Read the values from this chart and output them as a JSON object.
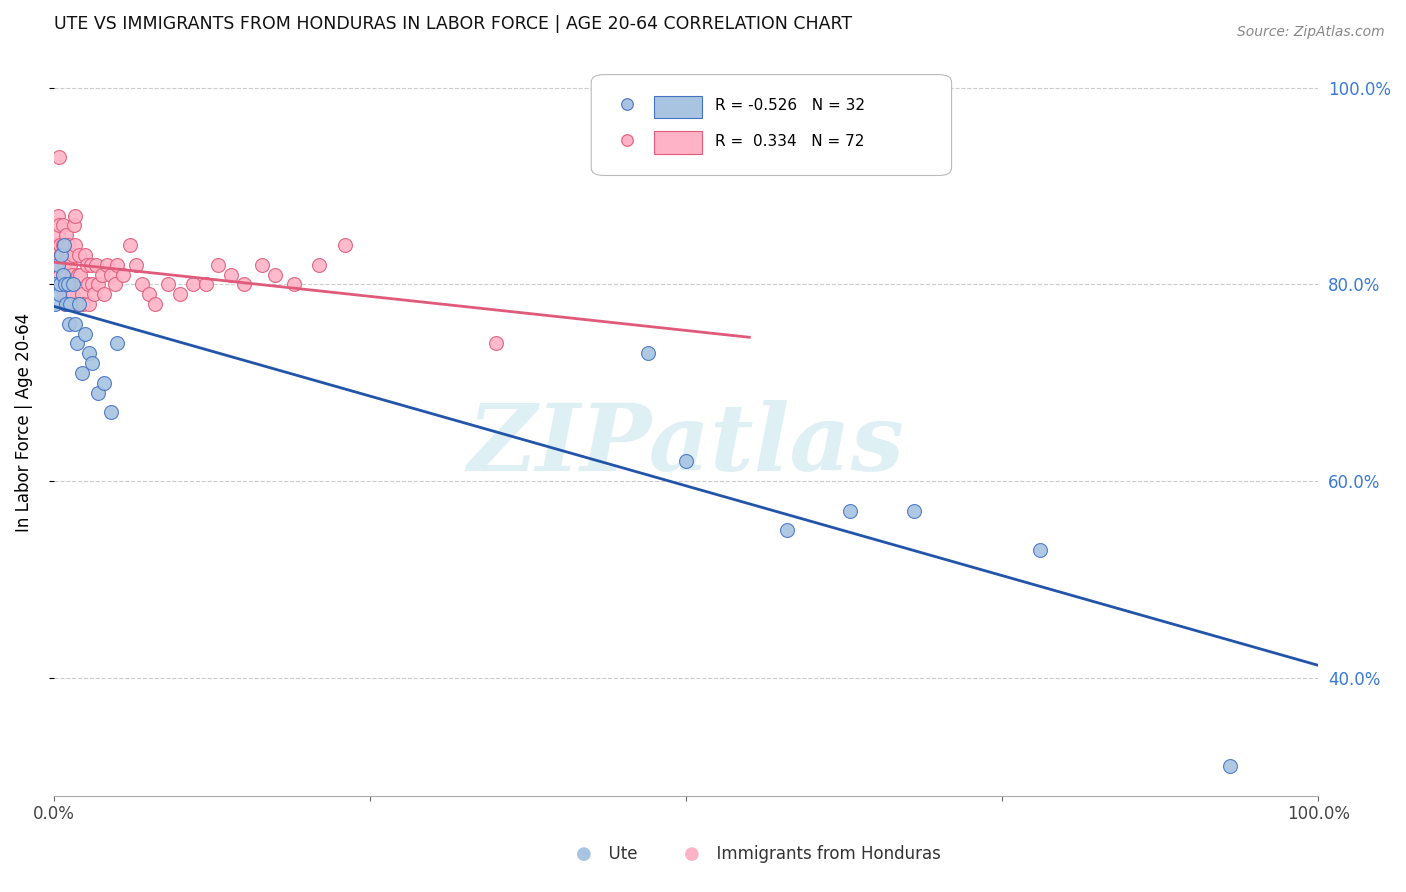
{
  "title": "UTE VS IMMIGRANTS FROM HONDURAS IN LABOR FORCE | AGE 20-64 CORRELATION CHART",
  "source": "Source: ZipAtlas.com",
  "ylabel": "In Labor Force | Age 20-64",
  "r_ute": -0.526,
  "n_ute": 32,
  "r_honduras": 0.334,
  "n_honduras": 72,
  "ute_color": "#a8c4e0",
  "honduras_color": "#ffb3c6",
  "ute_edge_color": "#4472c4",
  "honduras_edge_color": "#e05a7a",
  "ute_line_color": "#2255aa",
  "honduras_line_color": "#e05a7a",
  "ute_x": [
    0.001,
    0.002,
    0.003,
    0.004,
    0.005,
    0.006,
    0.007,
    0.008,
    0.009,
    0.01,
    0.011,
    0.012,
    0.013,
    0.015,
    0.017,
    0.018,
    0.02,
    0.022,
    0.025,
    0.028,
    0.03,
    0.035,
    0.04,
    0.045,
    0.05,
    0.47,
    0.5,
    0.58,
    0.63,
    0.68,
    0.78,
    0.93
  ],
  "ute_y": [
    0.78,
    0.8,
    0.82,
    0.79,
    0.8,
    0.83,
    0.81,
    0.84,
    0.8,
    0.78,
    0.8,
    0.76,
    0.78,
    0.8,
    0.76,
    0.74,
    0.78,
    0.71,
    0.75,
    0.73,
    0.72,
    0.69,
    0.7,
    0.67,
    0.74,
    0.73,
    0.62,
    0.55,
    0.57,
    0.57,
    0.53,
    0.31
  ],
  "honduras_x": [
    0.001,
    0.001,
    0.002,
    0.002,
    0.003,
    0.003,
    0.004,
    0.004,
    0.005,
    0.005,
    0.006,
    0.006,
    0.007,
    0.007,
    0.008,
    0.008,
    0.009,
    0.009,
    0.01,
    0.01,
    0.011,
    0.011,
    0.012,
    0.012,
    0.013,
    0.013,
    0.014,
    0.015,
    0.015,
    0.016,
    0.017,
    0.017,
    0.018,
    0.019,
    0.02,
    0.021,
    0.022,
    0.023,
    0.025,
    0.026,
    0.027,
    0.028,
    0.029,
    0.03,
    0.032,
    0.033,
    0.035,
    0.038,
    0.04,
    0.042,
    0.045,
    0.048,
    0.05,
    0.055,
    0.06,
    0.065,
    0.07,
    0.075,
    0.08,
    0.09,
    0.1,
    0.11,
    0.12,
    0.13,
    0.14,
    0.15,
    0.165,
    0.175,
    0.19,
    0.21,
    0.23,
    0.35
  ],
  "honduras_y": [
    0.82,
    0.84,
    0.8,
    0.83,
    0.85,
    0.87,
    0.86,
    0.93,
    0.81,
    0.84,
    0.8,
    0.83,
    0.84,
    0.86,
    0.79,
    0.82,
    0.78,
    0.81,
    0.83,
    0.85,
    0.8,
    0.84,
    0.79,
    0.83,
    0.8,
    0.82,
    0.81,
    0.79,
    0.83,
    0.86,
    0.84,
    0.87,
    0.78,
    0.81,
    0.83,
    0.81,
    0.79,
    0.78,
    0.83,
    0.82,
    0.8,
    0.78,
    0.82,
    0.8,
    0.79,
    0.82,
    0.8,
    0.81,
    0.79,
    0.82,
    0.81,
    0.8,
    0.82,
    0.81,
    0.84,
    0.82,
    0.8,
    0.79,
    0.78,
    0.8,
    0.79,
    0.8,
    0.8,
    0.82,
    0.81,
    0.8,
    0.82,
    0.81,
    0.8,
    0.82,
    0.84,
    0.74
  ],
  "xlim": [
    0.0,
    1.0
  ],
  "ylim": [
    0.28,
    1.04
  ],
  "watermark_text": "ZIPatlas",
  "background_color": "#ffffff",
  "grid_color": "#cccccc"
}
